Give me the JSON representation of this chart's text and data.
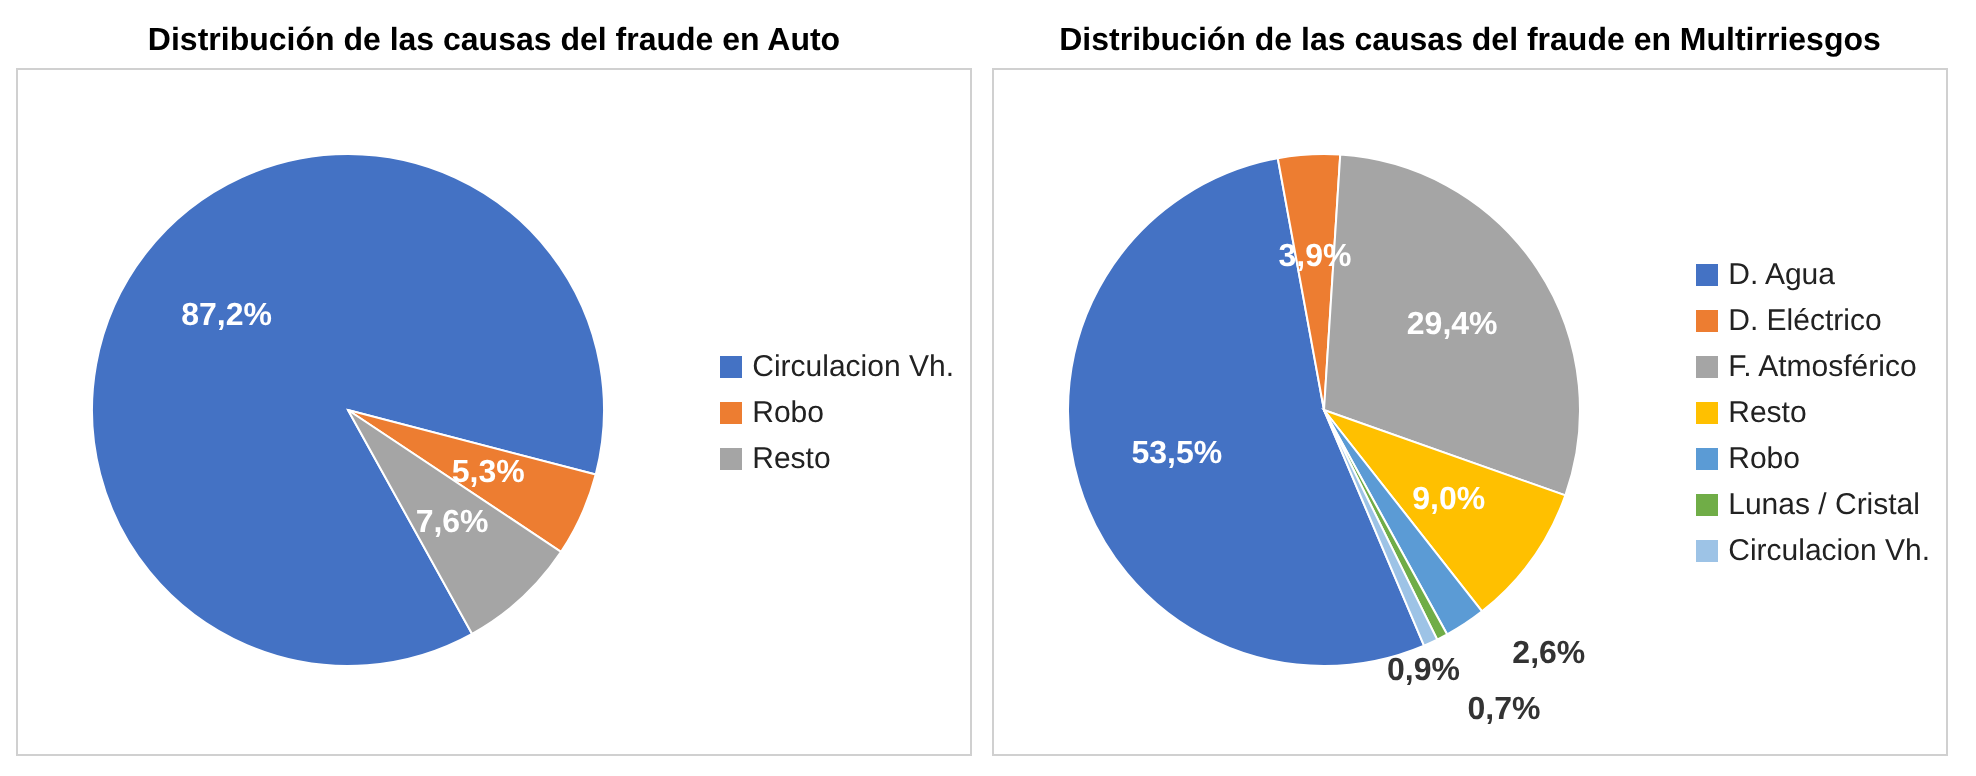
{
  "chart_data": [
    {
      "type": "pie",
      "title": "Distribución de las causas del fraude en Auto",
      "categories": [
        "Circulacion Vh.",
        "Robo",
        "Resto"
      ],
      "values": [
        87.2,
        5.3,
        7.6
      ],
      "colors": [
        "#4472c4",
        "#ed7d31",
        "#a5a5a5"
      ],
      "value_labels": [
        "87,2%",
        "5,3%",
        "7,6%"
      ],
      "legend": "right"
    },
    {
      "type": "pie",
      "title": "Distribución de las causas del fraude en Multirriesgos",
      "categories": [
        "D. Agua",
        "D. Eléctrico",
        "F. Atmosférico",
        "Resto",
        "Robo",
        "Lunas / Cristal",
        "Circulacion Vh."
      ],
      "values": [
        53.5,
        3.9,
        29.4,
        9.0,
        2.6,
        0.7,
        0.9
      ],
      "colors": [
        "#4472c4",
        "#ed7d31",
        "#a5a5a5",
        "#ffc000",
        "#5b9bd5",
        "#70ad47",
        "#9dc3e6"
      ],
      "value_labels": [
        "53,5%",
        "3,9%",
        "29,4%",
        "9,0%",
        "2,6%",
        "0,7%",
        "0,9%"
      ],
      "legend": "right"
    }
  ]
}
